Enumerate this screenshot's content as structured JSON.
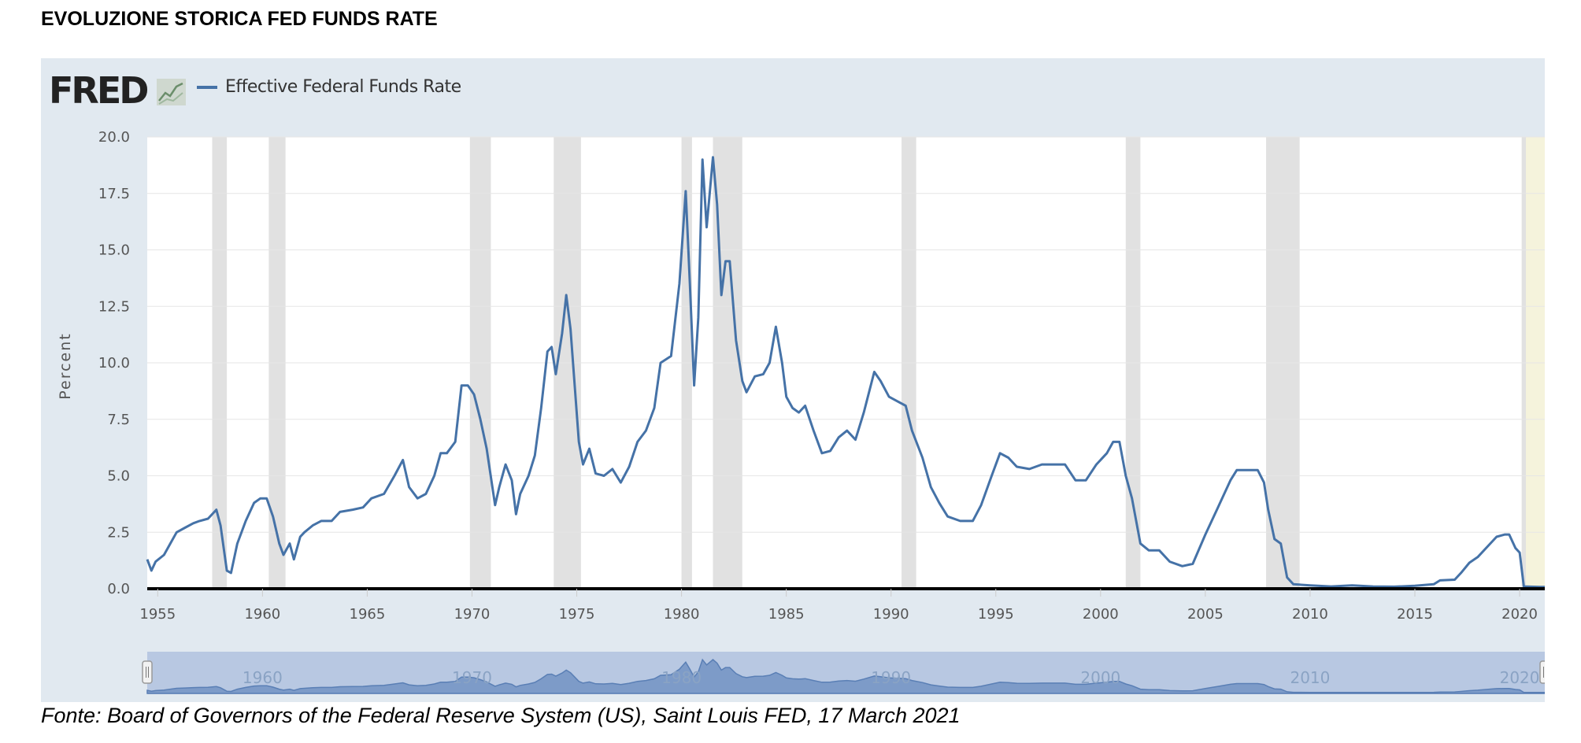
{
  "header": {
    "title": "EVOLUZIONE STORICA FED FUNDS RATE"
  },
  "branding": {
    "logo_text": "FRED",
    "logo_icon": "chart-line-icon"
  },
  "footer": {
    "source": "Fonte: Board of Governors of the Federal Reserve System (US), Saint Louis FED, 17 March 2021"
  },
  "colors": {
    "series": "#4572a7",
    "recession": "#e1e1e1",
    "panel": "#e1e9f0",
    "highlight": "#f5f3dc",
    "navigator": "#b8c8e2"
  },
  "chart_data": {
    "type": "line",
    "title": "",
    "xlabel": "",
    "ylabel": "Percent",
    "xlim": [
      1954.5,
      2021.2
    ],
    "ylim": [
      0,
      20
    ],
    "yticks": [
      0.0,
      2.5,
      5.0,
      7.5,
      10.0,
      12.5,
      15.0,
      17.5,
      20.0
    ],
    "ytick_labels": [
      "0.0",
      "2.5",
      "5.0",
      "7.5",
      "10.0",
      "12.5",
      "15.0",
      "17.5",
      "20.0"
    ],
    "xticks": [
      1955,
      1960,
      1965,
      1970,
      1975,
      1980,
      1985,
      1990,
      1995,
      2000,
      2005,
      2010,
      2015,
      2020
    ],
    "xtick_labels": [
      "1955",
      "1960",
      "1965",
      "1970",
      "1975",
      "1980",
      "1985",
      "1990",
      "1995",
      "2000",
      "2005",
      "2010",
      "2015",
      "2020"
    ],
    "navigator_labels": [
      {
        "x": 1960,
        "label": "1960"
      },
      {
        "x": 1970,
        "label": "1970"
      },
      {
        "x": 1980,
        "label": "1980"
      },
      {
        "x": 1990,
        "label": "1990"
      },
      {
        "x": 2000,
        "label": "2000"
      },
      {
        "x": 2010,
        "label": "2010"
      },
      {
        "x": 2020,
        "label": "2020"
      }
    ],
    "grid": true,
    "legend": "top-left",
    "recessions": [
      [
        1957.6,
        1958.3
      ],
      [
        1960.3,
        1961.1
      ],
      [
        1969.9,
        1970.9
      ],
      [
        1973.9,
        1975.2
      ],
      [
        1980.0,
        1980.5
      ],
      [
        1981.5,
        1982.9
      ],
      [
        1990.5,
        1991.2
      ],
      [
        2001.2,
        2001.9
      ],
      [
        2007.9,
        2009.5
      ],
      [
        2020.1,
        2020.3
      ]
    ],
    "highlight": [
      2020.1,
      2021.2
    ],
    "series": [
      {
        "name": "Effective Federal Funds Rate",
        "points": [
          [
            1954.5,
            1.3
          ],
          [
            1954.7,
            0.8
          ],
          [
            1954.9,
            1.2
          ],
          [
            1955.3,
            1.5
          ],
          [
            1955.6,
            2.0
          ],
          [
            1955.9,
            2.5
          ],
          [
            1956.3,
            2.7
          ],
          [
            1956.7,
            2.9
          ],
          [
            1957.0,
            3.0
          ],
          [
            1957.4,
            3.1
          ],
          [
            1957.8,
            3.5
          ],
          [
            1958.0,
            2.8
          ],
          [
            1958.3,
            0.8
          ],
          [
            1958.5,
            0.7
          ],
          [
            1958.8,
            2.0
          ],
          [
            1959.2,
            3.0
          ],
          [
            1959.6,
            3.8
          ],
          [
            1959.9,
            4.0
          ],
          [
            1960.2,
            4.0
          ],
          [
            1960.5,
            3.2
          ],
          [
            1960.8,
            2.0
          ],
          [
            1961.0,
            1.5
          ],
          [
            1961.3,
            2.0
          ],
          [
            1961.5,
            1.3
          ],
          [
            1961.8,
            2.3
          ],
          [
            1962.0,
            2.5
          ],
          [
            1962.4,
            2.8
          ],
          [
            1962.8,
            3.0
          ],
          [
            1963.3,
            3.0
          ],
          [
            1963.7,
            3.4
          ],
          [
            1964.3,
            3.5
          ],
          [
            1964.8,
            3.6
          ],
          [
            1965.2,
            4.0
          ],
          [
            1965.8,
            4.2
          ],
          [
            1966.3,
            5.0
          ],
          [
            1966.7,
            5.7
          ],
          [
            1967.0,
            4.5
          ],
          [
            1967.4,
            4.0
          ],
          [
            1967.8,
            4.2
          ],
          [
            1968.2,
            5.0
          ],
          [
            1968.5,
            6.0
          ],
          [
            1968.8,
            6.0
          ],
          [
            1969.2,
            6.5
          ],
          [
            1969.5,
            9.0
          ],
          [
            1969.8,
            9.0
          ],
          [
            1970.1,
            8.6
          ],
          [
            1970.4,
            7.5
          ],
          [
            1970.7,
            6.2
          ],
          [
            1971.1,
            3.7
          ],
          [
            1971.3,
            4.5
          ],
          [
            1971.6,
            5.5
          ],
          [
            1971.9,
            4.8
          ],
          [
            1972.1,
            3.3
          ],
          [
            1972.3,
            4.2
          ],
          [
            1972.7,
            5.0
          ],
          [
            1973.0,
            5.9
          ],
          [
            1973.3,
            8.0
          ],
          [
            1973.6,
            10.5
          ],
          [
            1973.8,
            10.7
          ],
          [
            1974.0,
            9.5
          ],
          [
            1974.3,
            11.3
          ],
          [
            1974.5,
            13.0
          ],
          [
            1974.7,
            11.5
          ],
          [
            1974.9,
            9.0
          ],
          [
            1975.1,
            6.5
          ],
          [
            1975.3,
            5.5
          ],
          [
            1975.6,
            6.2
          ],
          [
            1975.9,
            5.1
          ],
          [
            1976.3,
            5.0
          ],
          [
            1976.7,
            5.3
          ],
          [
            1977.1,
            4.7
          ],
          [
            1977.5,
            5.4
          ],
          [
            1977.9,
            6.5
          ],
          [
            1978.3,
            7.0
          ],
          [
            1978.7,
            8.0
          ],
          [
            1979.0,
            10.0
          ],
          [
            1979.5,
            10.3
          ],
          [
            1979.9,
            13.5
          ],
          [
            1980.2,
            17.6
          ],
          [
            1980.4,
            13.5
          ],
          [
            1980.6,
            9.0
          ],
          [
            1980.8,
            12.0
          ],
          [
            1981.0,
            19.0
          ],
          [
            1981.2,
            16.0
          ],
          [
            1981.5,
            19.1
          ],
          [
            1981.7,
            17.0
          ],
          [
            1981.9,
            13.0
          ],
          [
            1982.1,
            14.5
          ],
          [
            1982.3,
            14.5
          ],
          [
            1982.6,
            11.0
          ],
          [
            1982.9,
            9.2
          ],
          [
            1983.1,
            8.7
          ],
          [
            1983.5,
            9.4
          ],
          [
            1983.9,
            9.5
          ],
          [
            1984.2,
            10.0
          ],
          [
            1984.5,
            11.6
          ],
          [
            1984.8,
            10.0
          ],
          [
            1985.0,
            8.5
          ],
          [
            1985.3,
            8.0
          ],
          [
            1985.6,
            7.8
          ],
          [
            1985.9,
            8.1
          ],
          [
            1986.3,
            7.0
          ],
          [
            1986.7,
            6.0
          ],
          [
            1987.1,
            6.1
          ],
          [
            1987.5,
            6.7
          ],
          [
            1987.9,
            7.0
          ],
          [
            1988.3,
            6.6
          ],
          [
            1988.7,
            7.8
          ],
          [
            1989.2,
            9.6
          ],
          [
            1989.5,
            9.2
          ],
          [
            1989.9,
            8.5
          ],
          [
            1990.3,
            8.3
          ],
          [
            1990.7,
            8.1
          ],
          [
            1991.0,
            7.0
          ],
          [
            1991.5,
            5.8
          ],
          [
            1991.9,
            4.5
          ],
          [
            1992.3,
            3.8
          ],
          [
            1992.7,
            3.2
          ],
          [
            1993.3,
            3.0
          ],
          [
            1993.9,
            3.0
          ],
          [
            1994.3,
            3.7
          ],
          [
            1994.8,
            5.0
          ],
          [
            1995.2,
            6.0
          ],
          [
            1995.6,
            5.8
          ],
          [
            1996.0,
            5.4
          ],
          [
            1996.6,
            5.3
          ],
          [
            1997.2,
            5.5
          ],
          [
            1997.8,
            5.5
          ],
          [
            1998.3,
            5.5
          ],
          [
            1998.8,
            4.8
          ],
          [
            1999.3,
            4.8
          ],
          [
            1999.8,
            5.5
          ],
          [
            2000.3,
            6.0
          ],
          [
            2000.6,
            6.5
          ],
          [
            2000.9,
            6.5
          ],
          [
            2001.2,
            5.0
          ],
          [
            2001.5,
            4.0
          ],
          [
            2001.9,
            2.0
          ],
          [
            2002.3,
            1.7
          ],
          [
            2002.8,
            1.7
          ],
          [
            2003.3,
            1.2
          ],
          [
            2003.9,
            1.0
          ],
          [
            2004.4,
            1.1
          ],
          [
            2005.0,
            2.4
          ],
          [
            2005.6,
            3.6
          ],
          [
            2006.2,
            4.8
          ],
          [
            2006.5,
            5.25
          ],
          [
            2007.0,
            5.25
          ],
          [
            2007.5,
            5.25
          ],
          [
            2007.8,
            4.7
          ],
          [
            2008.0,
            3.5
          ],
          [
            2008.3,
            2.2
          ],
          [
            2008.6,
            2.0
          ],
          [
            2008.9,
            0.5
          ],
          [
            2009.2,
            0.2
          ],
          [
            2010.0,
            0.15
          ],
          [
            2011.0,
            0.1
          ],
          [
            2012.0,
            0.15
          ],
          [
            2013.0,
            0.1
          ],
          [
            2014.0,
            0.09
          ],
          [
            2015.0,
            0.13
          ],
          [
            2015.9,
            0.2
          ],
          [
            2016.2,
            0.37
          ],
          [
            2016.9,
            0.4
          ],
          [
            2017.2,
            0.7
          ],
          [
            2017.6,
            1.15
          ],
          [
            2018.0,
            1.4
          ],
          [
            2018.5,
            1.9
          ],
          [
            2018.9,
            2.3
          ],
          [
            2019.3,
            2.4
          ],
          [
            2019.5,
            2.4
          ],
          [
            2019.8,
            1.8
          ],
          [
            2020.0,
            1.6
          ],
          [
            2020.2,
            0.1
          ],
          [
            2020.5,
            0.09
          ],
          [
            2021.0,
            0.08
          ],
          [
            2021.2,
            0.08
          ]
        ]
      }
    ]
  }
}
